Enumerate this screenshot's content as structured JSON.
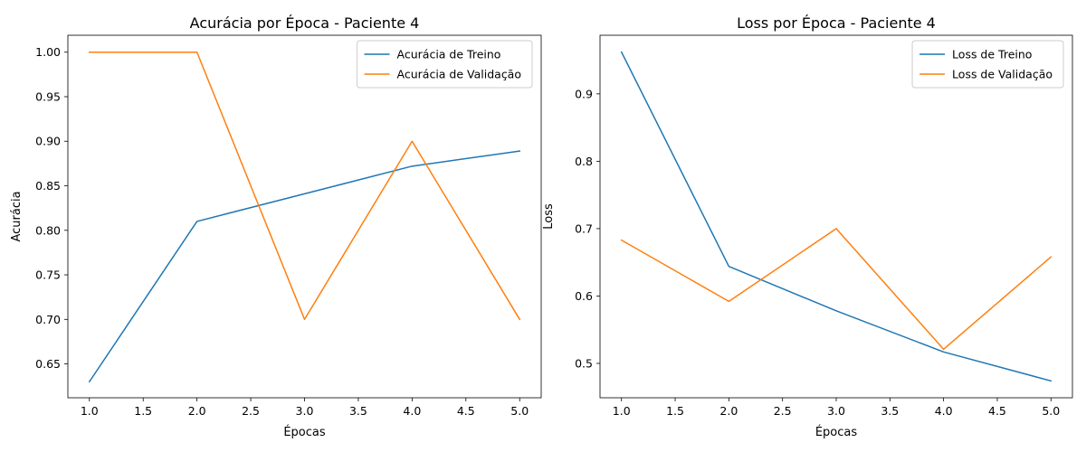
{
  "chart_data": [
    {
      "type": "line",
      "title": "Acurácia por Época - Paciente 4",
      "xlabel": "Épocas",
      "ylabel": "Acurácia",
      "xlim": [
        0.8,
        5.2
      ],
      "ylim": [
        0.612,
        1.019
      ],
      "xticks": [
        1.0,
        1.5,
        2.0,
        2.5,
        3.0,
        3.5,
        4.0,
        4.5,
        5.0
      ],
      "xtick_labels": [
        "1.0",
        "1.5",
        "2.0",
        "2.5",
        "3.0",
        "3.5",
        "4.0",
        "4.5",
        "5.0"
      ],
      "yticks": [
        0.65,
        0.7,
        0.75,
        0.8,
        0.85,
        0.9,
        0.95,
        1.0
      ],
      "ytick_labels": [
        "0.65",
        "0.70",
        "0.75",
        "0.80",
        "0.85",
        "0.90",
        "0.95",
        "1.00"
      ],
      "grid": false,
      "legend_position": "top-right",
      "x": [
        1,
        2,
        3,
        4,
        5
      ],
      "series": [
        {
          "name": "Acurácia de Treino",
          "color": "#1f77b4",
          "values": [
            0.63,
            0.81,
            0.841,
            0.872,
            0.889
          ]
        },
        {
          "name": "Acurácia de Validação",
          "color": "#ff7f0e",
          "values": [
            1.0,
            1.0,
            0.7,
            0.9,
            0.7
          ]
        }
      ]
    },
    {
      "type": "line",
      "title": "Loss por Época - Paciente 4",
      "xlabel": "Épocas",
      "ylabel": "Loss",
      "xlim": [
        0.8,
        5.2
      ],
      "ylim": [
        0.449,
        0.987
      ],
      "xticks": [
        1.0,
        1.5,
        2.0,
        2.5,
        3.0,
        3.5,
        4.0,
        4.5,
        5.0
      ],
      "xtick_labels": [
        "1.0",
        "1.5",
        "2.0",
        "2.5",
        "3.0",
        "3.5",
        "4.0",
        "4.5",
        "5.0"
      ],
      "yticks": [
        0.5,
        0.6,
        0.7,
        0.8,
        0.9
      ],
      "ytick_labels": [
        "0.5",
        "0.6",
        "0.7",
        "0.8",
        "0.9"
      ],
      "grid": false,
      "legend_position": "top-right",
      "x": [
        1,
        2,
        3,
        4,
        5
      ],
      "series": [
        {
          "name": "Loss de Treino",
          "color": "#1f77b4",
          "values": [
            0.962,
            0.644,
            0.578,
            0.517,
            0.474
          ]
        },
        {
          "name": "Loss de Validação",
          "color": "#ff7f0e",
          "values": [
            0.683,
            0.592,
            0.7,
            0.521,
            0.658
          ]
        }
      ]
    }
  ]
}
